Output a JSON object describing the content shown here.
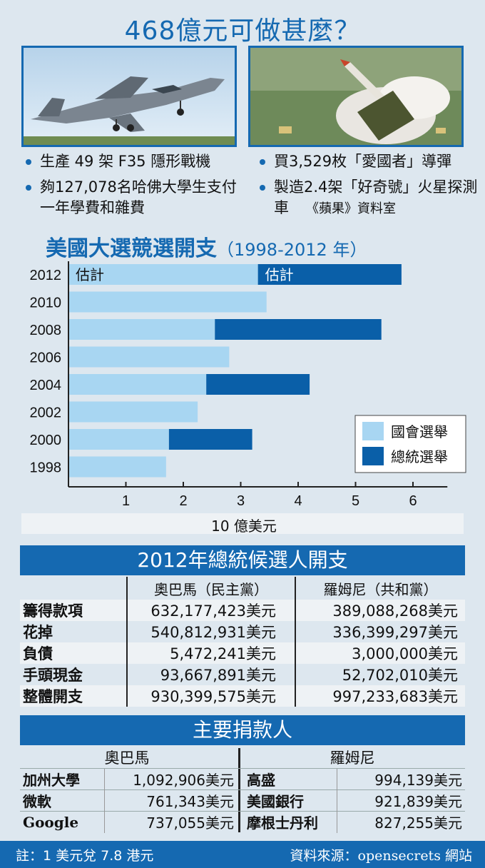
{
  "title": "468億元可做甚麼？",
  "items": {
    "left": [
      "生產 49 架 F35 隱形戰機",
      "夠127,078名哈佛大學生支付一年學費和雜費"
    ],
    "right": [
      "買3,529枚「愛國者」導彈",
      "製造2.4架「好奇號」火星探測車"
    ],
    "credit": "《蘋果》資料室"
  },
  "icons": {
    "photo_left": "f35-jet-photo",
    "photo_right": "patriot-missile-photo"
  },
  "colors": {
    "accent": "#1569b1",
    "congress": "#a8d6f2",
    "president": "#0a5fa8"
  },
  "chart_data": {
    "type": "bar",
    "orientation": "horizontal",
    "stacked": true,
    "title": "美國大選競選開支",
    "subtitle": "（1998-2012 年）",
    "categories": [
      "2012",
      "2010",
      "2008",
      "2006",
      "2004",
      "2002",
      "2000",
      "1998"
    ],
    "series": [
      {
        "name": "國會選舉",
        "values": [
          3.3,
          3.45,
          2.55,
          2.8,
          2.4,
          2.25,
          1.75,
          1.7
        ]
      },
      {
        "name": "總統選舉",
        "values": [
          2.5,
          0,
          2.9,
          0,
          1.8,
          0,
          1.45,
          0
        ]
      }
    ],
    "bar_labels": {
      "2012": [
        "估計",
        "估計"
      ]
    },
    "xticks": [
      "1",
      "2",
      "3",
      "4",
      "5",
      "6"
    ],
    "xlim": [
      0,
      6.5
    ],
    "xlabel": "10 億美元",
    "legend_position": "bottom-right"
  },
  "spending": {
    "title": "2012年總統候選人開支",
    "headers": [
      "奧巴馬（民主黨）",
      "羅姆尼（共和黨）"
    ],
    "rows": [
      {
        "label": "籌得款項",
        "a": "632,177,423美元",
        "b": "389,088,268美元"
      },
      {
        "label": "花掉",
        "a": "540,812,931美元",
        "b": "336,399,297美元"
      },
      {
        "label": "負債",
        "a": "5,472,241美元",
        "b": "3,000,000美元"
      },
      {
        "label": "手頭現金",
        "a": "93,667,891美元",
        "b": "52,702,010美元"
      },
      {
        "label": "整體開支",
        "a": "930,399,575美元",
        "b": "997,233,683美元"
      }
    ]
  },
  "donors": {
    "title": "主要捐款人",
    "candidates": [
      "奧巴馬",
      "羅姆尼"
    ],
    "rows": [
      {
        "a_name": "加州大學",
        "a_val": "1,092,906美元",
        "b_name": "高盛",
        "b_val": "994,139美元"
      },
      {
        "a_name": "微軟",
        "a_val": "761,343美元",
        "b_name": "美國銀行",
        "b_val": "921,839美元"
      },
      {
        "a_name": "Google",
        "a_val": "737,055美元",
        "b_name": "摩根士丹利",
        "b_val": "827,255美元"
      }
    ]
  },
  "footer": {
    "note": "註：1 美元兌 7.8 港元",
    "source": "資料來源：opensecrets 網站"
  }
}
